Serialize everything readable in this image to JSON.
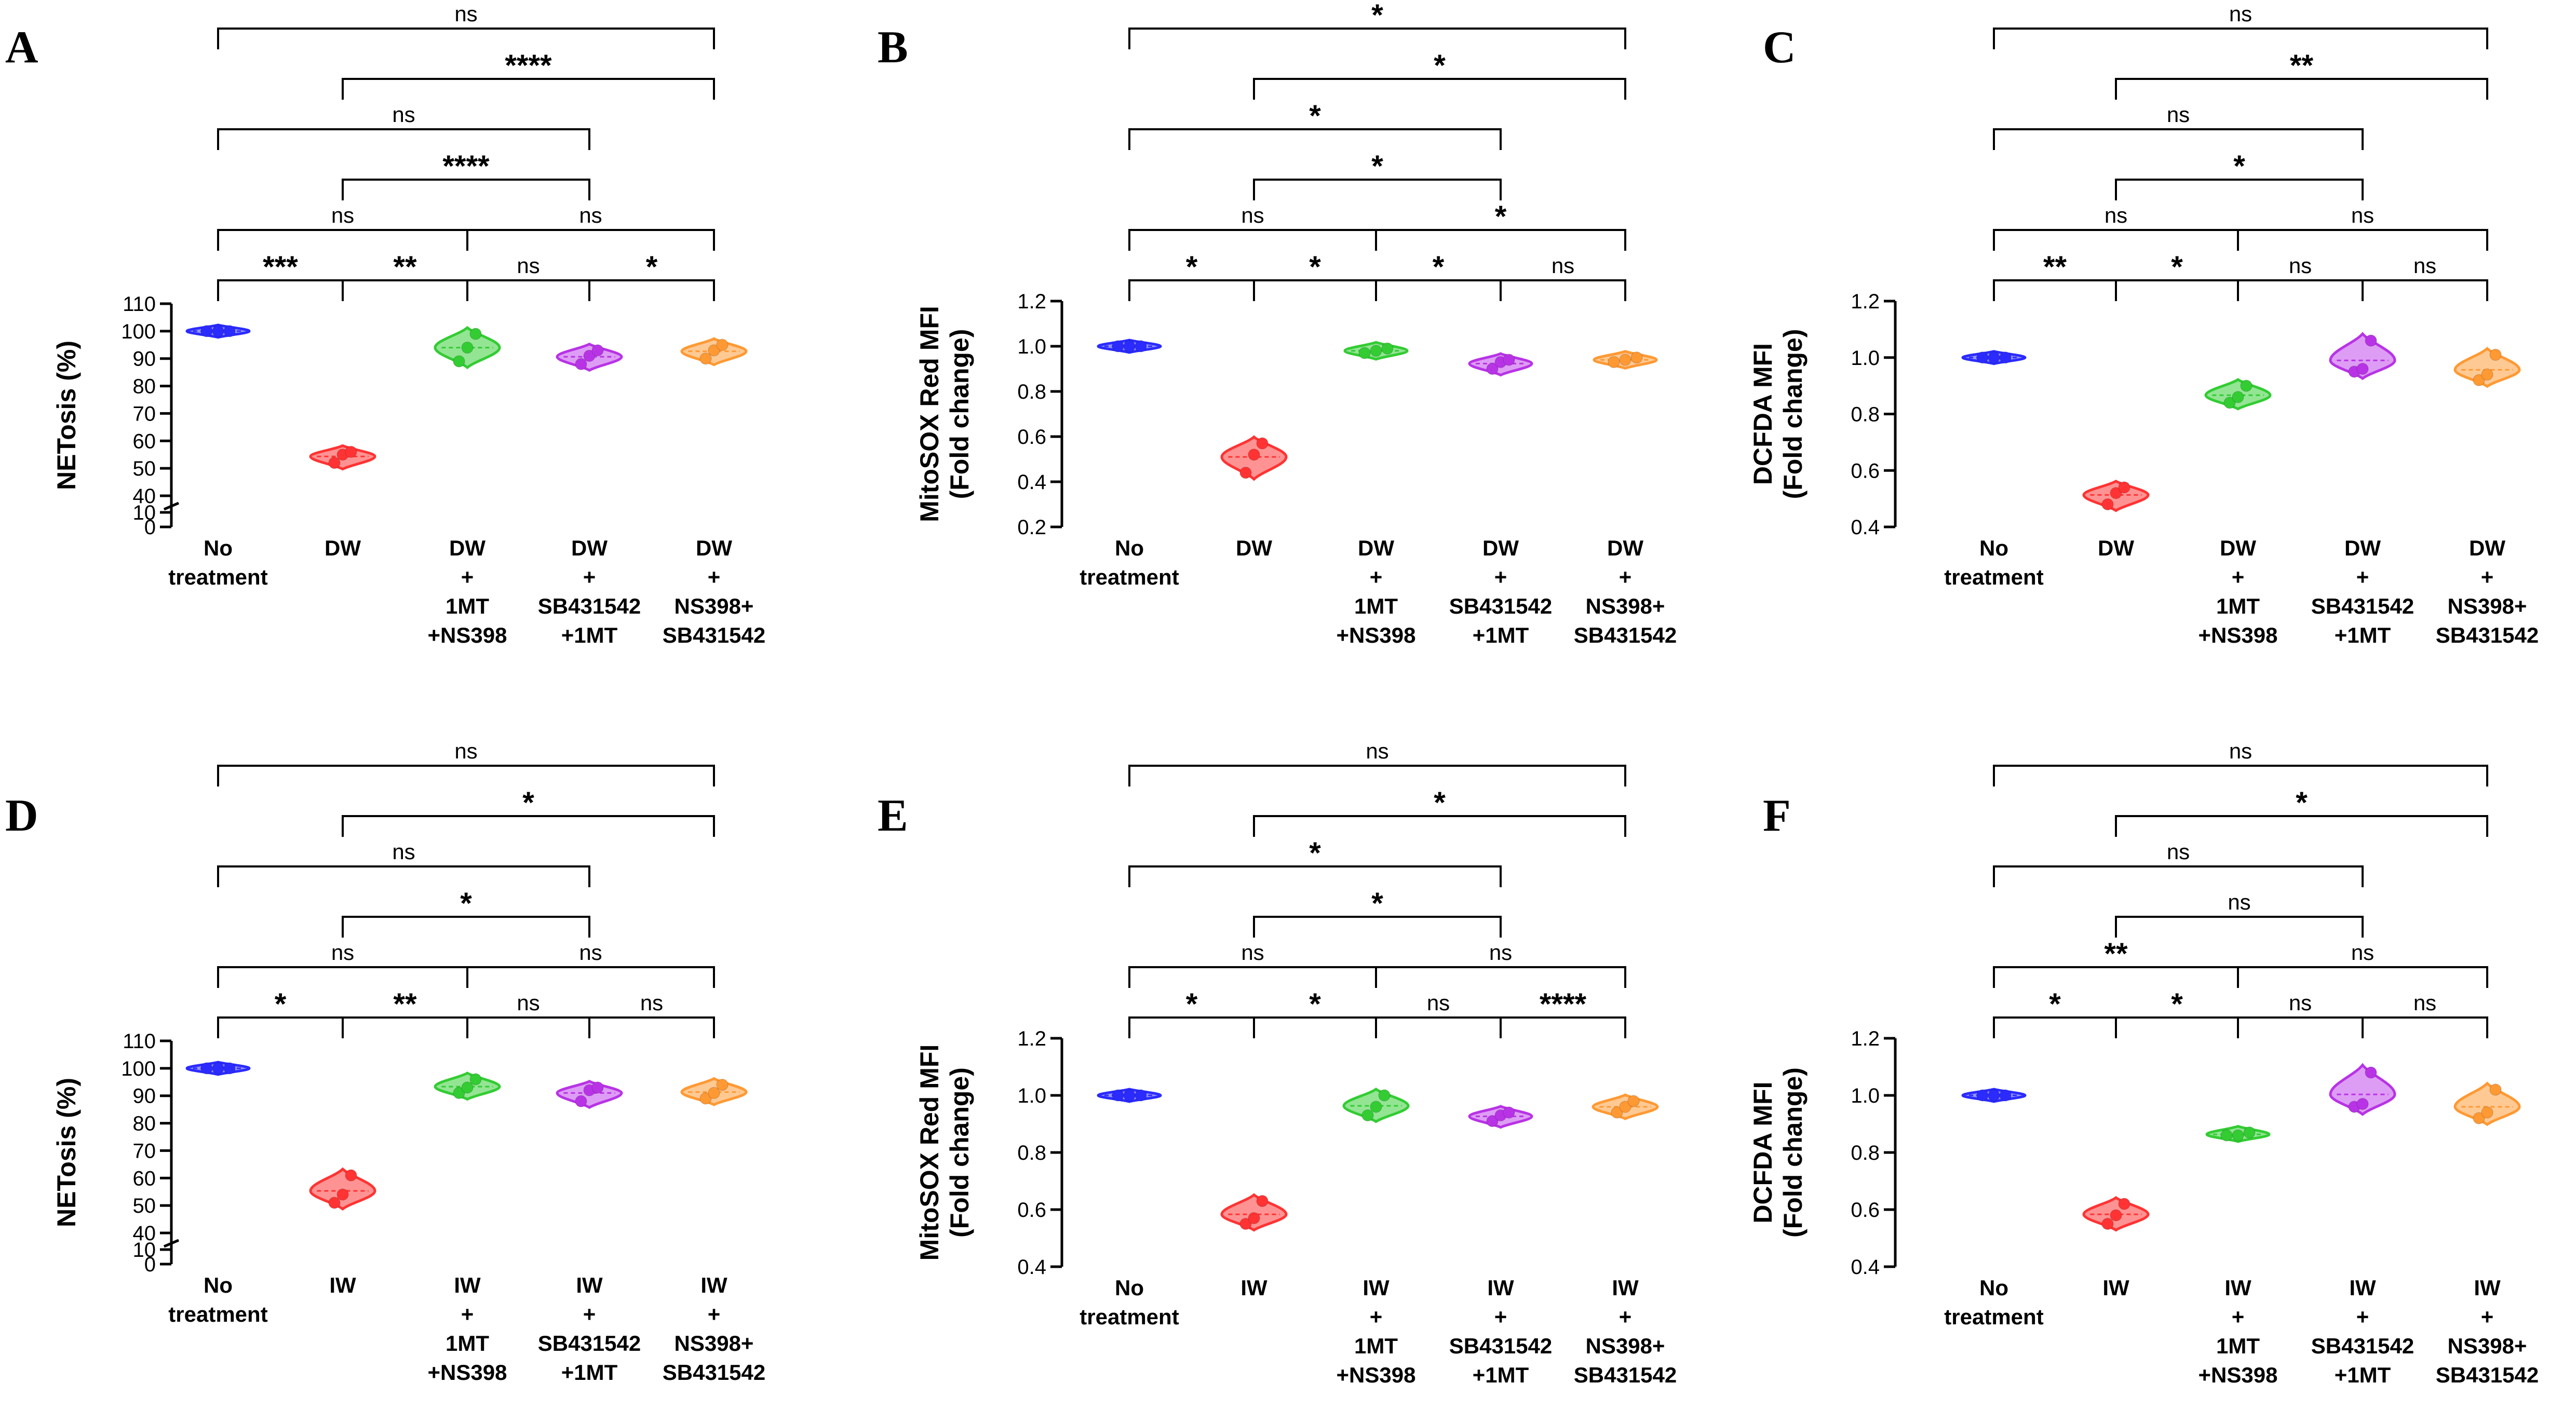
{
  "chart_data": [
    {
      "panel": "A",
      "type": "violin",
      "ylabel": "NETosis (%)",
      "yaxis": {
        "kind": "broken",
        "ticks": [
          0,
          10,
          40,
          50,
          60,
          70,
          80,
          90,
          100,
          110
        ]
      },
      "groups": [
        {
          "label": [
            "No",
            "treatment"
          ],
          "points": [
            100,
            100,
            100
          ]
        },
        {
          "label": [
            "DW"
          ],
          "points": [
            52,
            55,
            56
          ]
        },
        {
          "label": [
            "DW",
            "+",
            "1MT",
            "+NS398"
          ],
          "points": [
            89,
            94,
            99
          ]
        },
        {
          "label": [
            "DW",
            "+",
            "SB431542",
            "+1MT"
          ],
          "points": [
            88,
            91,
            93
          ]
        },
        {
          "label": [
            "DW",
            "+",
            "NS398+",
            "SB431542"
          ],
          "points": [
            90,
            93,
            95
          ]
        }
      ],
      "comparisons": [
        {
          "from": 1,
          "to": 2,
          "label": "***"
        },
        {
          "from": 2,
          "to": 3,
          "label": "**"
        },
        {
          "from": 3,
          "to": 4,
          "label": "ns"
        },
        {
          "from": 4,
          "to": 5,
          "label": "*"
        },
        {
          "from": 1,
          "to": 3,
          "label": "ns"
        },
        {
          "from": 3,
          "to": 5,
          "label": "ns"
        },
        {
          "from": 2,
          "to": 4,
          "label": "****"
        },
        {
          "from": 1,
          "to": 4,
          "label": "ns"
        },
        {
          "from": 2,
          "to": 5,
          "label": "****"
        },
        {
          "from": 1,
          "to": 5,
          "label": "ns"
        }
      ]
    },
    {
      "panel": "B",
      "type": "violin",
      "ylabel": [
        "MitoSOX Red MFI",
        "(Fold change)"
      ],
      "yaxis": {
        "kind": "linear",
        "min": 0.2,
        "max": 1.2,
        "ticks": [
          "0.2",
          "0.4",
          "0.6",
          "0.8",
          "1.0",
          "1.2"
        ]
      },
      "groups": [
        {
          "label": [
            "No",
            "treatment"
          ],
          "points": [
            1.0,
            1.0,
            1.0
          ]
        },
        {
          "label": [
            "DW"
          ],
          "points": [
            0.44,
            0.52,
            0.57
          ]
        },
        {
          "label": [
            "DW",
            "+",
            "1MT",
            "+NS398"
          ],
          "points": [
            0.97,
            0.98,
            0.99
          ]
        },
        {
          "label": [
            "DW",
            "+",
            "SB431542",
            "+1MT"
          ],
          "points": [
            0.9,
            0.93,
            0.94
          ]
        },
        {
          "label": [
            "DW",
            "+",
            "NS398+",
            "SB431542"
          ],
          "points": [
            0.93,
            0.94,
            0.95
          ]
        }
      ],
      "comparisons": [
        {
          "from": 1,
          "to": 2,
          "label": "*"
        },
        {
          "from": 2,
          "to": 3,
          "label": "*"
        },
        {
          "from": 3,
          "to": 4,
          "label": "*"
        },
        {
          "from": 4,
          "to": 5,
          "label": "ns"
        },
        {
          "from": 1,
          "to": 3,
          "label": "ns"
        },
        {
          "from": 3,
          "to": 5,
          "label": "*"
        },
        {
          "from": 2,
          "to": 4,
          "label": "*"
        },
        {
          "from": 1,
          "to": 4,
          "label": "*"
        },
        {
          "from": 2,
          "to": 5,
          "label": "*"
        },
        {
          "from": 1,
          "to": 5,
          "label": "*"
        }
      ]
    },
    {
      "panel": "C",
      "type": "violin",
      "ylabel": [
        "DCFDA MFI",
        "(Fold change)"
      ],
      "yaxis": {
        "kind": "linear",
        "min": 0.4,
        "max": 1.2,
        "ticks": [
          "0.4",
          "0.6",
          "0.8",
          "1.0",
          "1.2"
        ]
      },
      "groups": [
        {
          "label": [
            "No",
            "treatment"
          ],
          "points": [
            1.0,
            1.0,
            1.0
          ]
        },
        {
          "label": [
            "DW"
          ],
          "points": [
            0.48,
            0.52,
            0.54
          ]
        },
        {
          "label": [
            "DW",
            "+",
            "1MT",
            "+NS398"
          ],
          "points": [
            0.84,
            0.86,
            0.9
          ]
        },
        {
          "label": [
            "DW",
            "+",
            "SB431542",
            "+1MT"
          ],
          "points": [
            0.95,
            0.96,
            1.06
          ]
        },
        {
          "label": [
            "DW",
            "+",
            "NS398+",
            "SB431542"
          ],
          "points": [
            0.92,
            0.94,
            1.01
          ]
        }
      ],
      "comparisons": [
        {
          "from": 1,
          "to": 2,
          "label": "**"
        },
        {
          "from": 2,
          "to": 3,
          "label": "*"
        },
        {
          "from": 3,
          "to": 4,
          "label": "ns"
        },
        {
          "from": 4,
          "to": 5,
          "label": "ns"
        },
        {
          "from": 1,
          "to": 3,
          "label": "ns"
        },
        {
          "from": 3,
          "to": 5,
          "label": "ns"
        },
        {
          "from": 2,
          "to": 4,
          "label": "*"
        },
        {
          "from": 1,
          "to": 4,
          "label": "ns"
        },
        {
          "from": 2,
          "to": 5,
          "label": "**"
        },
        {
          "from": 1,
          "to": 5,
          "label": "ns"
        }
      ]
    },
    {
      "panel": "D",
      "type": "violin",
      "ylabel": "NETosis (%)",
      "yaxis": {
        "kind": "broken",
        "ticks": [
          0,
          10,
          40,
          50,
          60,
          70,
          80,
          90,
          100,
          110
        ]
      },
      "groups": [
        {
          "label": [
            "No",
            "treatment"
          ],
          "points": [
            100,
            100,
            100
          ]
        },
        {
          "label": [
            "IW"
          ],
          "points": [
            51,
            54,
            61
          ]
        },
        {
          "label": [
            "IW",
            "+",
            "1MT",
            "+NS398"
          ],
          "points": [
            91,
            93,
            96
          ]
        },
        {
          "label": [
            "IW",
            "+",
            "SB431542",
            "+1MT"
          ],
          "points": [
            88,
            92,
            93
          ]
        },
        {
          "label": [
            "IW",
            "+",
            "NS398+",
            "SB431542"
          ],
          "points": [
            89,
            91,
            94
          ]
        }
      ],
      "comparisons": [
        {
          "from": 1,
          "to": 2,
          "label": "*"
        },
        {
          "from": 2,
          "to": 3,
          "label": "**"
        },
        {
          "from": 3,
          "to": 4,
          "label": "ns"
        },
        {
          "from": 4,
          "to": 5,
          "label": "ns"
        },
        {
          "from": 1,
          "to": 3,
          "label": "ns"
        },
        {
          "from": 3,
          "to": 5,
          "label": "ns"
        },
        {
          "from": 2,
          "to": 4,
          "label": "*"
        },
        {
          "from": 1,
          "to": 4,
          "label": "ns"
        },
        {
          "from": 2,
          "to": 5,
          "label": "*"
        },
        {
          "from": 1,
          "to": 5,
          "label": "ns"
        }
      ]
    },
    {
      "panel": "E",
      "type": "violin",
      "ylabel": [
        "MitoSOX Red MFI",
        "(Fold change)"
      ],
      "yaxis": {
        "kind": "linear",
        "min": 0.4,
        "max": 1.2,
        "ticks": [
          "0.4",
          "0.6",
          "0.8",
          "1.0",
          "1.2"
        ]
      },
      "groups": [
        {
          "label": [
            "No",
            "treatment"
          ],
          "points": [
            1.0,
            1.0,
            1.0
          ]
        },
        {
          "label": [
            "IW"
          ],
          "points": [
            0.55,
            0.57,
            0.63
          ]
        },
        {
          "label": [
            "IW",
            "+",
            "1MT",
            "+NS398"
          ],
          "points": [
            0.93,
            0.96,
            1.0
          ]
        },
        {
          "label": [
            "IW",
            "+",
            "SB431542",
            "+1MT"
          ],
          "points": [
            0.91,
            0.93,
            0.94
          ]
        },
        {
          "label": [
            "IW",
            "+",
            "NS398+",
            "SB431542"
          ],
          "points": [
            0.94,
            0.96,
            0.98
          ]
        }
      ],
      "comparisons": [
        {
          "from": 1,
          "to": 2,
          "label": "*"
        },
        {
          "from": 2,
          "to": 3,
          "label": "*"
        },
        {
          "from": 3,
          "to": 4,
          "label": "ns"
        },
        {
          "from": 4,
          "to": 5,
          "label": "****"
        },
        {
          "from": 1,
          "to": 3,
          "label": "ns"
        },
        {
          "from": 3,
          "to": 5,
          "label": "ns"
        },
        {
          "from": 2,
          "to": 4,
          "label": "*"
        },
        {
          "from": 1,
          "to": 4,
          "label": "*"
        },
        {
          "from": 2,
          "to": 5,
          "label": "*"
        },
        {
          "from": 1,
          "to": 5,
          "label": "ns"
        }
      ]
    },
    {
      "panel": "F",
      "type": "violin",
      "ylabel": [
        "DCFDA MFI",
        "(Fold change)"
      ],
      "yaxis": {
        "kind": "linear",
        "min": 0.4,
        "max": 1.2,
        "ticks": [
          "0.4",
          "0.6",
          "0.8",
          "1.0",
          "1.2"
        ]
      },
      "groups": [
        {
          "label": [
            "No",
            "treatment"
          ],
          "points": [
            1.0,
            1.0,
            1.0
          ]
        },
        {
          "label": [
            "IW"
          ],
          "points": [
            0.55,
            0.58,
            0.62
          ]
        },
        {
          "label": [
            "IW",
            "+",
            "1MT",
            "+NS398"
          ],
          "points": [
            0.86,
            0.86,
            0.87
          ]
        },
        {
          "label": [
            "IW",
            "+",
            "SB431542",
            "+1MT"
          ],
          "points": [
            0.96,
            0.97,
            1.08
          ]
        },
        {
          "label": [
            "IW",
            "+",
            "NS398+",
            "SB431542"
          ],
          "points": [
            0.92,
            0.94,
            1.02
          ]
        }
      ],
      "comparisons": [
        {
          "from": 1,
          "to": 2,
          "label": "*"
        },
        {
          "from": 2,
          "to": 3,
          "label": "*"
        },
        {
          "from": 3,
          "to": 4,
          "label": "ns"
        },
        {
          "from": 4,
          "to": 5,
          "label": "ns"
        },
        {
          "from": 1,
          "to": 3,
          "label": "**"
        },
        {
          "from": 3,
          "to": 5,
          "label": "ns"
        },
        {
          "from": 2,
          "to": 4,
          "label": "ns"
        },
        {
          "from": 1,
          "to": 4,
          "label": "ns"
        },
        {
          "from": 2,
          "to": 5,
          "label": "*"
        },
        {
          "from": 1,
          "to": 5,
          "label": "ns"
        }
      ]
    }
  ],
  "colors": {
    "series": [
      "#2b2bff",
      "#ff3333",
      "#33cc33",
      "#b833e6",
      "#ff9933"
    ],
    "fills": [
      "#8080ff",
      "#ff8080",
      "#80e080",
      "#d88cf2",
      "#ffc080"
    ]
  }
}
